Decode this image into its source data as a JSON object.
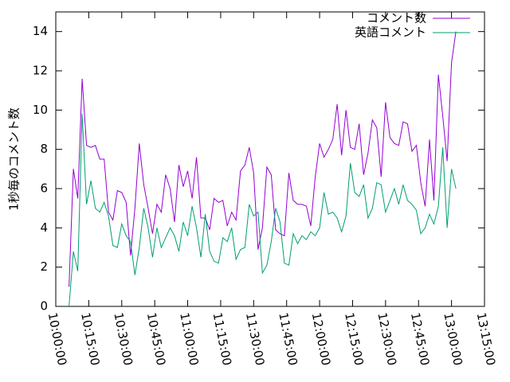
{
  "chart_data": {
    "type": "line",
    "ylabel": "1秒毎のコメント数",
    "x": [
      "10:06:00",
      "10:08:00",
      "10:10:00",
      "10:12:00",
      "10:14:00",
      "10:16:00",
      "10:18:00",
      "10:20:00",
      "10:22:00",
      "10:24:00",
      "10:26:00",
      "10:28:00",
      "10:30:00",
      "10:32:00",
      "10:34:00",
      "10:36:00",
      "10:38:00",
      "10:40:00",
      "10:42:00",
      "10:44:00",
      "10:46:00",
      "10:48:00",
      "10:50:00",
      "10:52:00",
      "10:54:00",
      "10:56:00",
      "10:58:00",
      "11:00:00",
      "11:02:00",
      "11:04:00",
      "11:06:00",
      "11:08:00",
      "11:10:00",
      "11:12:00",
      "11:14:00",
      "11:16:00",
      "11:18:00",
      "11:20:00",
      "11:22:00",
      "11:24:00",
      "11:26:00",
      "11:28:00",
      "11:30:00",
      "11:32:00",
      "11:34:00",
      "11:36:00",
      "11:38:00",
      "11:40:00",
      "11:42:00",
      "11:44:00",
      "11:46:00",
      "11:48:00",
      "11:50:00",
      "11:52:00",
      "11:54:00",
      "11:56:00",
      "11:58:00",
      "12:00:00",
      "12:02:00",
      "12:04:00",
      "12:06:00",
      "12:08:00",
      "12:10:00",
      "12:12:00",
      "12:14:00",
      "12:16:00",
      "12:18:00",
      "12:20:00",
      "12:22:00",
      "12:24:00",
      "12:26:00",
      "12:28:00",
      "12:30:00",
      "12:32:00",
      "12:34:00",
      "12:36:00",
      "12:38:00",
      "12:40:00",
      "12:42:00",
      "12:44:00",
      "12:46:00",
      "12:48:00",
      "12:50:00",
      "12:52:00",
      "12:54:00",
      "12:56:00",
      "12:58:00",
      "13:00:00",
      "13:02:00"
    ],
    "series": [
      {
        "name": "コメント数",
        "color": "#9400d3",
        "values": [
          1,
          7,
          5.5,
          11.6,
          8.2,
          8.1,
          8.2,
          7.5,
          7.5,
          4.8,
          4.4,
          5.9,
          5.8,
          5.3,
          2.6,
          5,
          8.3,
          6.2,
          5,
          3.7,
          5.2,
          4.8,
          6.7,
          6,
          4.3,
          7.2,
          6.1,
          6.9,
          5.5,
          7.6,
          4.5,
          4.5,
          3.9,
          5.5,
          5.3,
          5.4,
          4.1,
          4.8,
          4.4,
          6.9,
          7.2,
          8.1,
          6.8,
          2.9,
          4,
          7.1,
          6.7,
          3.9,
          3.7,
          3.6,
          6.8,
          5.4,
          5.2,
          5.2,
          5.1,
          4.1,
          6.6,
          8.3,
          7.6,
          8,
          8.5,
          10.3,
          7.7,
          10,
          8.1,
          8,
          9.3,
          6.7,
          7.8,
          9.5,
          9.1,
          6.6,
          10.4,
          8.6,
          8.3,
          8.2,
          9.4,
          9.3,
          7.9,
          8.2,
          6.3,
          5.1,
          8.5,
          5.4,
          11.8,
          9.7,
          7.4,
          12.4,
          14
        ]
      },
      {
        "name": "英語コメント",
        "color": "#009e73",
        "values": [
          0,
          2.8,
          1.8,
          9.8,
          5.2,
          6.4,
          5,
          4.8,
          5.3,
          4.6,
          3.1,
          3,
          4.2,
          3.6,
          3.3,
          1.6,
          3,
          5,
          4,
          2.5,
          4,
          3,
          3.5,
          4,
          3.6,
          2.8,
          4.3,
          3.6,
          5.1,
          4,
          2.5,
          4.7,
          2.8,
          2.3,
          2.2,
          3.5,
          3.3,
          4,
          2.4,
          2.9,
          3,
          5.2,
          4.6,
          4.8,
          1.7,
          2.1,
          3.3,
          5,
          4.3,
          2.2,
          2.1,
          3.7,
          3.2,
          3.6,
          3.4,
          3.8,
          3.6,
          4,
          5.8,
          4.7,
          4.8,
          4.5,
          3.8,
          4.6,
          7.3,
          5.8,
          5.6,
          6.2,
          4.5,
          5,
          6.3,
          6.2,
          4.8,
          5.4,
          6,
          5.2,
          6.2,
          5.4,
          5.2,
          4.9,
          3.7,
          4,
          4.7,
          4.2,
          5.1,
          8.1,
          4,
          7,
          6
        ]
      }
    ],
    "xlim": [
      "10:00:00",
      "13:15:00"
    ],
    "xticks": [
      "10:00:00",
      "10:15:00",
      "10:30:00",
      "10:45:00",
      "11:00:00",
      "11:15:00",
      "11:30:00",
      "11:45:00",
      "12:00:00",
      "12:15:00",
      "12:30:00",
      "12:45:00",
      "13:00:00",
      "13:15:00"
    ],
    "ylim": [
      0,
      15
    ],
    "yticks": [
      0,
      2,
      4,
      6,
      8,
      10,
      12,
      14
    ],
    "legend": "top-right"
  }
}
